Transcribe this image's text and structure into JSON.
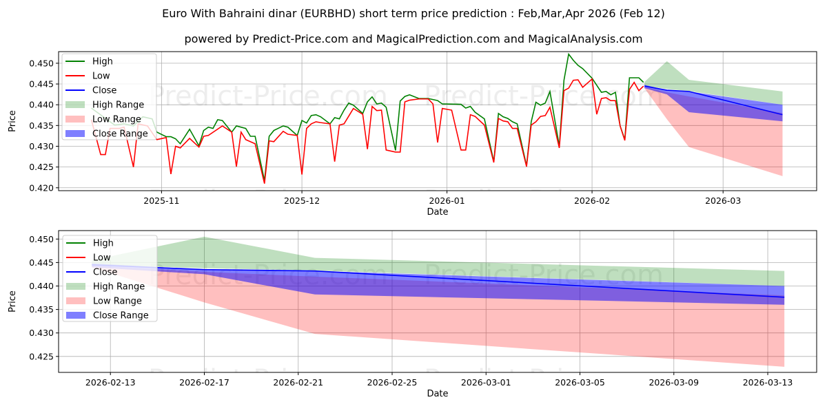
{
  "title": "Euro With Bahraini dinar (EURBHD) short term price prediction : Feb,Mar,Apr 2026 (Feb 12)",
  "subtitle": "powered by Predict-Price.com and MagicalPrediction.com and MagicalAnalysis.com",
  "watermark": "Predict-Price.com",
  "colors": {
    "high": "#008000",
    "low": "#ff0000",
    "close": "#0000ff",
    "high_range": "rgba(0,128,0,0.25)",
    "low_range": "rgba(255,0,0,0.25)",
    "close_range": "rgba(0,0,255,0.5)"
  },
  "legend": [
    "High",
    "Low",
    "Close",
    "High Range",
    "Low Range",
    "Close Range"
  ],
  "chart_data": [
    {
      "type": "line",
      "xlabel": "Date",
      "ylabel": "Price",
      "xlim": [
        "2025-10-10",
        "2026-03-21"
      ],
      "ylim": [
        0.4193,
        0.4528
      ],
      "yticks": [
        0.42,
        0.425,
        0.43,
        0.435,
        0.44,
        0.445,
        0.45
      ],
      "ytick_labels": [
        "0.420",
        "0.425",
        "0.430",
        "0.435",
        "0.440",
        "0.445",
        "0.450"
      ],
      "xticks": [
        "2025-11-01",
        "2025-12-01",
        "2026-01-01",
        "2026-02-01",
        "2026-03-01"
      ],
      "xtick_labels": [
        "2025-11",
        "2025-12",
        "2026-01",
        "2026-02",
        "2026-03"
      ],
      "grid": true,
      "legend_position": "upper-left",
      "high": [
        [
          "2025-10-17",
          0.4392
        ],
        [
          "2025-10-22",
          0.4351
        ],
        [
          "2025-10-24",
          0.4354
        ],
        [
          "2025-10-26",
          0.4349
        ],
        [
          "2025-10-28",
          0.4371
        ],
        [
          "2025-10-30",
          0.4366
        ],
        [
          "2025-10-31",
          0.4334
        ],
        [
          "2025-11-02",
          0.4323
        ],
        [
          "2025-11-03",
          0.4323
        ],
        [
          "2025-11-04",
          0.4318
        ],
        [
          "2025-11-05",
          0.4306
        ],
        [
          "2025-11-07",
          0.4341
        ],
        [
          "2025-11-09",
          0.4301
        ],
        [
          "2025-11-10",
          0.4338
        ],
        [
          "2025-11-11",
          0.4346
        ],
        [
          "2025-11-12",
          0.4343
        ],
        [
          "2025-11-13",
          0.4364
        ],
        [
          "2025-11-14",
          0.4362
        ],
        [
          "2025-11-16",
          0.4334
        ],
        [
          "2025-11-17",
          0.4349
        ],
        [
          "2025-11-19",
          0.4343
        ],
        [
          "2025-11-20",
          0.4324
        ],
        [
          "2025-11-21",
          0.4324
        ],
        [
          "2025-11-23",
          0.4217
        ],
        [
          "2025-11-24",
          0.4324
        ],
        [
          "2025-11-25",
          0.4338
        ],
        [
          "2025-11-27",
          0.4349
        ],
        [
          "2025-11-28",
          0.4346
        ],
        [
          "2025-11-30",
          0.4326
        ],
        [
          "2025-12-01",
          0.4362
        ],
        [
          "2025-12-02",
          0.4356
        ],
        [
          "2025-12-03",
          0.4374
        ],
        [
          "2025-12-04",
          0.4376
        ],
        [
          "2025-12-05",
          0.4371
        ],
        [
          "2025-12-07",
          0.4354
        ],
        [
          "2025-12-08",
          0.4369
        ],
        [
          "2025-12-09",
          0.4366
        ],
        [
          "2025-12-10",
          0.4387
        ],
        [
          "2025-12-11",
          0.4404
        ],
        [
          "2025-12-12",
          0.4399
        ],
        [
          "2025-12-14",
          0.4379
        ],
        [
          "2025-12-15",
          0.4407
        ],
        [
          "2025-12-16",
          0.4419
        ],
        [
          "2025-12-17",
          0.4402
        ],
        [
          "2025-12-18",
          0.4404
        ],
        [
          "2025-12-19",
          0.4394
        ],
        [
          "2025-12-21",
          0.429
        ],
        [
          "2025-12-22",
          0.4409
        ],
        [
          "2025-12-23",
          0.442
        ],
        [
          "2025-12-24",
          0.4424
        ],
        [
          "2025-12-26",
          0.4415
        ],
        [
          "2025-12-28",
          0.4415
        ],
        [
          "2025-12-30",
          0.441
        ],
        [
          "2025-12-31",
          0.4402
        ],
        [
          "2026-01-04",
          0.4401
        ],
        [
          "2026-01-05",
          0.4392
        ],
        [
          "2026-01-06",
          0.4396
        ],
        [
          "2026-01-07",
          0.4382
        ],
        [
          "2026-01-09",
          0.4366
        ],
        [
          "2026-01-11",
          0.4263
        ],
        [
          "2026-01-12",
          0.4379
        ],
        [
          "2026-01-13",
          0.4371
        ],
        [
          "2026-01-14",
          0.4367
        ],
        [
          "2026-01-15",
          0.4359
        ],
        [
          "2026-01-16",
          0.4354
        ],
        [
          "2026-01-18",
          0.4253
        ],
        [
          "2026-01-19",
          0.4359
        ],
        [
          "2026-01-20",
          0.4406
        ],
        [
          "2026-01-21",
          0.4399
        ],
        [
          "2026-01-22",
          0.4404
        ],
        [
          "2026-01-23",
          0.4432
        ],
        [
          "2026-01-25",
          0.43
        ],
        [
          "2026-01-26",
          0.4459
        ],
        [
          "2026-01-27",
          0.4522
        ],
        [
          "2026-01-28",
          0.4507
        ],
        [
          "2026-01-29",
          0.4495
        ],
        [
          "2026-01-30",
          0.4487
        ],
        [
          "2026-02-01",
          0.4464
        ],
        [
          "2026-02-03",
          0.443
        ],
        [
          "2026-02-04",
          0.4432
        ],
        [
          "2026-02-05",
          0.4424
        ],
        [
          "2026-02-06",
          0.443
        ],
        [
          "2026-02-07",
          0.4349
        ],
        [
          "2026-02-08",
          0.4316
        ],
        [
          "2026-02-09",
          0.4465
        ],
        [
          "2026-02-11",
          0.4465
        ],
        [
          "2026-02-12",
          0.4454
        ]
      ],
      "low": [
        [
          "2025-10-17",
          0.4364
        ],
        [
          "2025-10-19",
          0.428
        ],
        [
          "2025-10-20",
          0.428
        ],
        [
          "2025-10-21",
          0.4343
        ],
        [
          "2025-10-23",
          0.4343
        ],
        [
          "2025-10-24",
          0.4346
        ],
        [
          "2025-10-26",
          0.425
        ],
        [
          "2025-10-27",
          0.4354
        ],
        [
          "2025-10-29",
          0.4349
        ],
        [
          "2025-10-31",
          0.4316
        ],
        [
          "2025-11-02",
          0.4321
        ],
        [
          "2025-11-03",
          0.4233
        ],
        [
          "2025-11-04",
          0.43
        ],
        [
          "2025-11-05",
          0.4296
        ],
        [
          "2025-11-07",
          0.4319
        ],
        [
          "2025-11-09",
          0.4298
        ],
        [
          "2025-11-10",
          0.4324
        ],
        [
          "2025-11-11",
          0.4326
        ],
        [
          "2025-11-14",
          0.4349
        ],
        [
          "2025-11-16",
          0.4334
        ],
        [
          "2025-11-17",
          0.4251
        ],
        [
          "2025-11-18",
          0.4334
        ],
        [
          "2025-11-19",
          0.4316
        ],
        [
          "2025-11-21",
          0.4306
        ],
        [
          "2025-11-23",
          0.421
        ],
        [
          "2025-11-24",
          0.4313
        ],
        [
          "2025-11-25",
          0.4311
        ],
        [
          "2025-11-27",
          0.4336
        ],
        [
          "2025-11-28",
          0.4329
        ],
        [
          "2025-11-30",
          0.4326
        ],
        [
          "2025-12-01",
          0.4232
        ],
        [
          "2025-12-02",
          0.4343
        ],
        [
          "2025-12-03",
          0.4354
        ],
        [
          "2025-12-04",
          0.4359
        ],
        [
          "2025-12-05",
          0.4357
        ],
        [
          "2025-12-07",
          0.4354
        ],
        [
          "2025-12-08",
          0.4263
        ],
        [
          "2025-12-09",
          0.4351
        ],
        [
          "2025-12-10",
          0.4354
        ],
        [
          "2025-12-12",
          0.4391
        ],
        [
          "2025-12-14",
          0.4377
        ],
        [
          "2025-12-15",
          0.4293
        ],
        [
          "2025-12-16",
          0.4396
        ],
        [
          "2025-12-17",
          0.4386
        ],
        [
          "2025-12-18",
          0.4387
        ],
        [
          "2025-12-19",
          0.4291
        ],
        [
          "2025-12-21",
          0.4286
        ],
        [
          "2025-12-22",
          0.4286
        ],
        [
          "2025-12-23",
          0.4407
        ],
        [
          "2025-12-24",
          0.4411
        ],
        [
          "2025-12-26",
          0.4414
        ],
        [
          "2025-12-28",
          0.4414
        ],
        [
          "2025-12-29",
          0.4402
        ],
        [
          "2025-12-30",
          0.4309
        ],
        [
          "2025-12-31",
          0.4391
        ],
        [
          "2026-01-02",
          0.4387
        ],
        [
          "2026-01-04",
          0.4291
        ],
        [
          "2026-01-05",
          0.4291
        ],
        [
          "2026-01-06",
          0.4376
        ],
        [
          "2026-01-07",
          0.4372
        ],
        [
          "2026-01-09",
          0.4351
        ],
        [
          "2026-01-11",
          0.4261
        ],
        [
          "2026-01-12",
          0.4367
        ],
        [
          "2026-01-13",
          0.4361
        ],
        [
          "2026-01-14",
          0.4359
        ],
        [
          "2026-01-15",
          0.4343
        ],
        [
          "2026-01-16",
          0.4343
        ],
        [
          "2026-01-18",
          0.4251
        ],
        [
          "2026-01-19",
          0.4351
        ],
        [
          "2026-01-20",
          0.4359
        ],
        [
          "2026-01-21",
          0.4372
        ],
        [
          "2026-01-22",
          0.4374
        ],
        [
          "2026-01-23",
          0.4394
        ],
        [
          "2026-01-25",
          0.4296
        ],
        [
          "2026-01-26",
          0.4434
        ],
        [
          "2026-01-27",
          0.444
        ],
        [
          "2026-01-28",
          0.4459
        ],
        [
          "2026-01-29",
          0.446
        ],
        [
          "2026-01-30",
          0.4442
        ],
        [
          "2026-02-01",
          0.4462
        ],
        [
          "2026-02-02",
          0.4377
        ],
        [
          "2026-02-03",
          0.4415
        ],
        [
          "2026-02-04",
          0.4417
        ],
        [
          "2026-02-05",
          0.441
        ],
        [
          "2026-02-06",
          0.441
        ],
        [
          "2026-02-07",
          0.4349
        ],
        [
          "2026-02-08",
          0.4314
        ],
        [
          "2026-02-09",
          0.4437
        ],
        [
          "2026-02-10",
          0.4454
        ],
        [
          "2026-02-11",
          0.4434
        ],
        [
          "2026-02-12",
          0.4445
        ]
      ]
    },
    {
      "type": "area",
      "xlabel": "Date",
      "ylabel": "Price",
      "xlim": [
        "2026-02-10T19:00",
        "2026-03-15T02:00"
      ],
      "ylim": [
        0.4216,
        0.4518
      ],
      "yticks": [
        0.425,
        0.43,
        0.435,
        0.44,
        0.445,
        0.45
      ],
      "ytick_labels": [
        "0.425",
        "0.430",
        "0.435",
        "0.440",
        "0.445",
        "0.450"
      ],
      "xticks": [
        "2026-02-13",
        "2026-02-17",
        "2026-02-21",
        "2026-02-25",
        "2026-03-01",
        "2026-03-05",
        "2026-03-09",
        "2026-03-13"
      ],
      "xtick_labels": [
        "2026-02-13",
        "2026-02-17",
        "2026-02-21",
        "2026-02-25",
        "2026-03-01",
        "2026-03-05",
        "2026-03-09",
        "2026-03-13"
      ],
      "grid": true,
      "legend_position": "upper-left",
      "dates": [
        "2026-02-12T05:00",
        "2026-02-17T00:00",
        "2026-02-21T17:00",
        "2026-03-13T17:00"
      ],
      "close": [
        0.4445,
        0.4435,
        0.4432,
        0.4376
      ],
      "high_range": {
        "upper": [
          0.4455,
          0.4505,
          0.446,
          0.4432
        ],
        "lower": [
          0.4445,
          0.4438,
          0.4433,
          0.44
        ]
      },
      "low_range": {
        "upper": [
          0.4443,
          0.443,
          0.442,
          0.438
        ],
        "lower": [
          0.444,
          0.4365,
          0.4298,
          0.4228
        ]
      },
      "close_range": {
        "upper": [
          0.4448,
          0.4435,
          0.4432,
          0.44
        ],
        "lower": [
          0.444,
          0.4425,
          0.4382,
          0.436
        ]
      }
    }
  ]
}
